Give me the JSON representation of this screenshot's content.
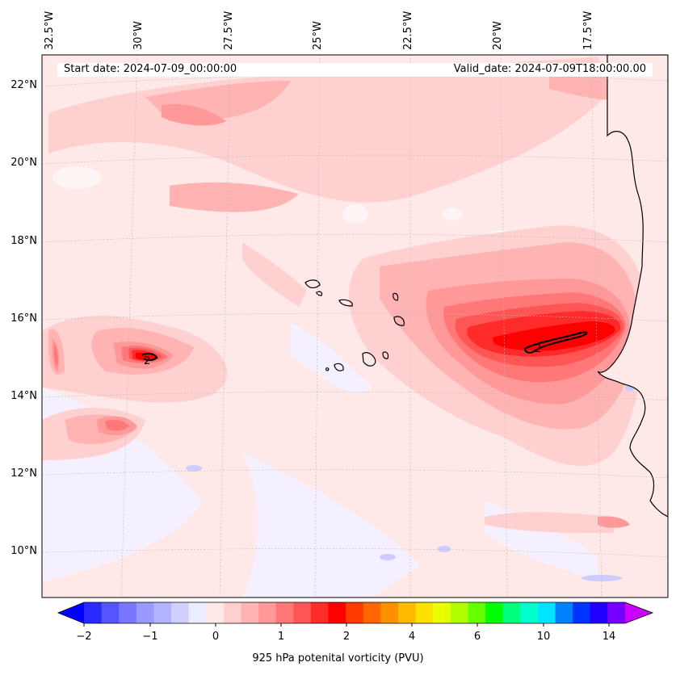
{
  "map": {
    "header": {
      "start_date": "Start date: 2024-07-09_00:00:00",
      "valid_date": "Valid_date: 2024-07-09T18:00:00.00"
    },
    "lon_labels": [
      "32.5°W",
      "30°W",
      "27.5°W",
      "25°W",
      "22.5°W",
      "20°W",
      "17.5°W"
    ],
    "lat_labels": [
      "22°N",
      "20°N",
      "18°N",
      "16°N",
      "14°N",
      "12°N",
      "10°N"
    ],
    "contour_labels": [
      "2",
      "2"
    ],
    "colorbar": {
      "title": "925 hPa potenital vorticity (PVU)",
      "ticks": [
        "−2",
        "−1",
        "0",
        "1",
        "2",
        "4",
        "6",
        "10",
        "14"
      ],
      "colors": [
        "#0000ff",
        "#2a2aff",
        "#5555ff",
        "#7777ff",
        "#9999ff",
        "#b3b3ff",
        "#d0d0ff",
        "#ececff",
        "#ffe8e8",
        "#ffd0d0",
        "#ffb3b3",
        "#ff9999",
        "#ff7777",
        "#ff5555",
        "#ff2a2a",
        "#ff0000",
        "#ff3a00",
        "#ff6600",
        "#ff9000",
        "#ffbb00",
        "#ffe100",
        "#e8ff00",
        "#b0ff00",
        "#66ff00",
        "#00ff00",
        "#00ff7f",
        "#00ffcc",
        "#00e5ff",
        "#0080ff",
        "#0033ff",
        "#2200ff",
        "#7700ff",
        "#cc00ff"
      ]
    }
  }
}
